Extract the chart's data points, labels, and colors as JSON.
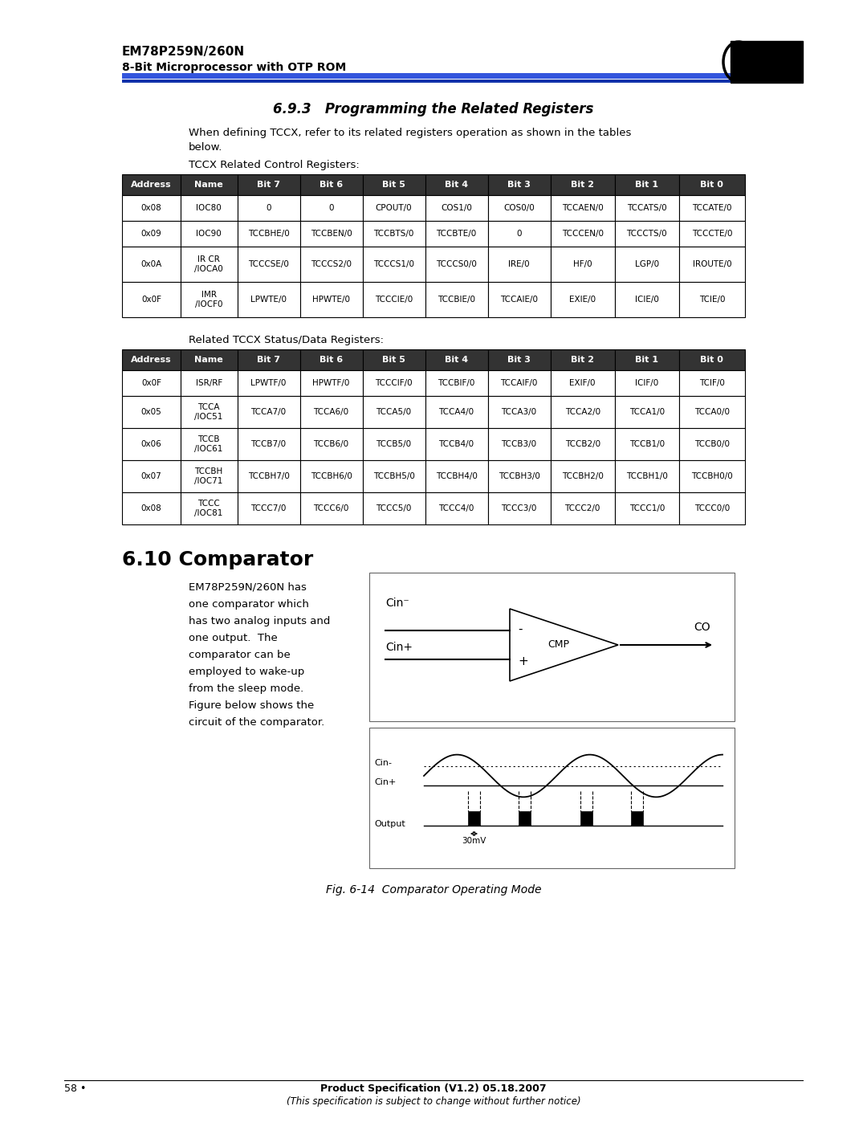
{
  "page_title": "EM78P259N/260N",
  "page_subtitle": "8-Bit Microprocessor with OTP ROM",
  "section_title": "6.9.3   Programming the Related Registers",
  "table1_label": "TCCX Related Control Registers:",
  "table1_headers": [
    "Address",
    "Name",
    "Bit 7",
    "Bit 6",
    "Bit 5",
    "Bit 4",
    "Bit 3",
    "Bit 2",
    "Bit 1",
    "Bit 0"
  ],
  "table1_rows": [
    [
      "0x08",
      "IOC80",
      "0",
      "0",
      "CPOUT/0",
      "COS1/0",
      "COS0/0",
      "TCCAEN/0",
      "TCCATS/0",
      "TCCATE/0"
    ],
    [
      "0x09",
      "IOC90",
      "TCCBHE/0",
      "TCCBEN/0",
      "TCCBTS/0",
      "TCCBTE/0",
      "0",
      "TCCCEN/0",
      "TCCCTS/0",
      "TCCCTE/0"
    ],
    [
      "0x0A",
      "IR CR\n/IOCA0",
      "TCCCSE/0",
      "TCCCS2/0",
      "TCCCS1/0",
      "TCCCS0/0",
      "IRE/0",
      "HF/0",
      "LGP/0",
      "IROUTE/0"
    ],
    [
      "0x0F",
      "IMR\n/IOCF0",
      "LPWTE/0",
      "HPWTE/0",
      "TCCCIE/0",
      "TCCBIE/0",
      "TCCAIE/0",
      "EXIE/0",
      "ICIE/0",
      "TCIE/0"
    ]
  ],
  "table2_label": "Related TCCX Status/Data Registers:",
  "table2_headers": [
    "Address",
    "Name",
    "Bit 7",
    "Bit 6",
    "Bit 5",
    "Bit 4",
    "Bit 3",
    "Bit 2",
    "Bit 1",
    "Bit 0"
  ],
  "table2_rows": [
    [
      "0x0F",
      "ISR/RF",
      "LPWTF/0",
      "HPWTF/0",
      "TCCCIF/0",
      "TCCBIF/0",
      "TCCAIF/0",
      "EXIF/0",
      "ICIF/0",
      "TCIF/0"
    ],
    [
      "0x05",
      "TCCA\n/IOC51",
      "TCCA7/0",
      "TCCA6/0",
      "TCCA5/0",
      "TCCA4/0",
      "TCCA3/0",
      "TCCA2/0",
      "TCCA1/0",
      "TCCA0/0"
    ],
    [
      "0x06",
      "TCCB\n/IOC61",
      "TCCB7/0",
      "TCCB6/0",
      "TCCB5/0",
      "TCCB4/0",
      "TCCB3/0",
      "TCCB2/0",
      "TCCB1/0",
      "TCCB0/0"
    ],
    [
      "0x07",
      "TCCBH\n/IOC71",
      "TCCBH7/0",
      "TCCBH6/0",
      "TCCBH5/0",
      "TCCBH4/0",
      "TCCBH3/0",
      "TCCBH2/0",
      "TCCBH1/0",
      "TCCBH0/0"
    ],
    [
      "0x08",
      "TCCC\n/IOC81",
      "TCCC7/0",
      "TCCC6/0",
      "TCCC5/0",
      "TCCC4/0",
      "TCCC3/0",
      "TCCC2/0",
      "TCCC1/0",
      "TCCC0/0"
    ]
  ],
  "section2_title": "6.10 Comparator",
  "comparator_lines": [
    "EM78P259N/260N has",
    "one comparator which",
    "has two analog inputs and",
    "one output.  The",
    "comparator can be",
    "employed to wake-up",
    "from the sleep mode.",
    "Figure below shows the",
    "circuit of the comparator."
  ],
  "fig_caption": "Fig. 6-14  Comparator Operating Mode",
  "footer_left": "58 •",
  "footer_right": "Product Specification (V1.2) 05.18.2007",
  "footer_right2": "(This specification is subject to change without further notice)"
}
